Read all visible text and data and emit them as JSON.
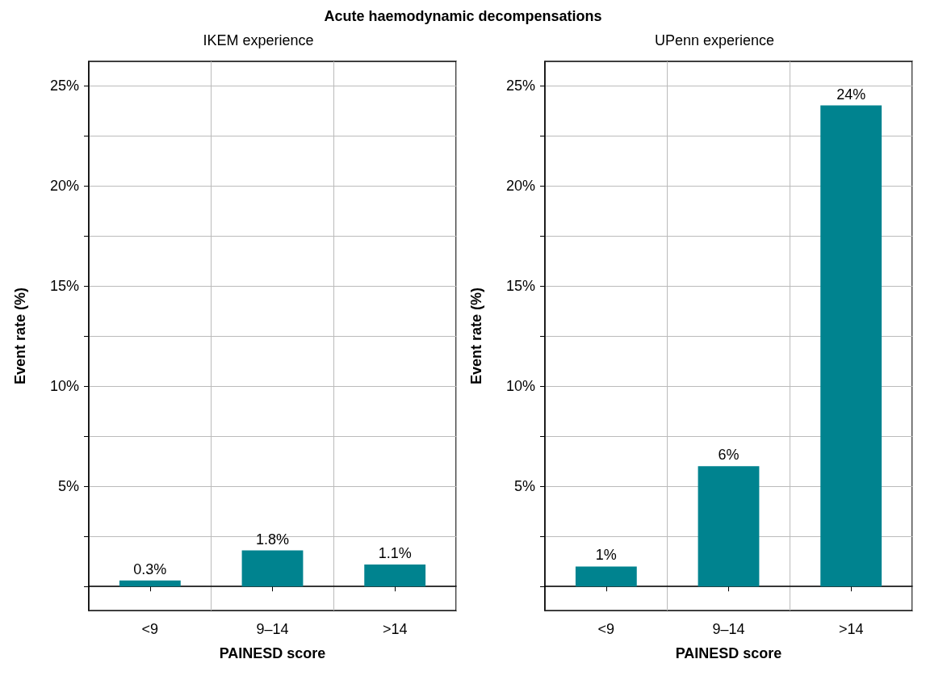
{
  "chart_data": [
    {
      "type": "bar",
      "title": "Acute haemodynamic decompensations",
      "subtitle": "IKEM experience",
      "xlabel": "PAINESD score",
      "ylabel": "Event rate (%)",
      "categories": [
        "<9",
        "9–14",
        ">14"
      ],
      "values": [
        0.3,
        1.8,
        1.1
      ],
      "value_labels": [
        "0.3%",
        "1.8%",
        "1.1%"
      ],
      "color": "#00838f",
      "ylim": [
        -1.2,
        26.2
      ],
      "yticks": [
        {
          "value": 0,
          "label": null
        },
        {
          "value": 2.5,
          "label": null
        },
        {
          "value": 5,
          "label": "5%"
        },
        {
          "value": 7.5,
          "label": null
        },
        {
          "value": 10,
          "label": "10%"
        },
        {
          "value": 12.5,
          "label": null
        },
        {
          "value": 15,
          "label": "15%"
        },
        {
          "value": 17.5,
          "label": null
        },
        {
          "value": 20,
          "label": "20%"
        },
        {
          "value": 22.5,
          "label": null
        },
        {
          "value": 25,
          "label": "25%"
        }
      ],
      "grid": true
    },
    {
      "type": "bar",
      "subtitle": "UPenn experience",
      "xlabel": "PAINESD score",
      "ylabel": "Event rate (%)",
      "categories": [
        "<9",
        "9–14",
        ">14"
      ],
      "values": [
        1,
        6,
        24
      ],
      "value_labels": [
        "1%",
        "6%",
        "24%"
      ],
      "color": "#00838f",
      "ylim": [
        -1.2,
        26.2
      ],
      "yticks": [
        {
          "value": 0,
          "label": null
        },
        {
          "value": 2.5,
          "label": null
        },
        {
          "value": 5,
          "label": "5%"
        },
        {
          "value": 7.5,
          "label": null
        },
        {
          "value": 10,
          "label": "10%"
        },
        {
          "value": 12.5,
          "label": null
        },
        {
          "value": 15,
          "label": "15%"
        },
        {
          "value": 17.5,
          "label": null
        },
        {
          "value": 20,
          "label": "20%"
        },
        {
          "value": 22.5,
          "label": null
        },
        {
          "value": 25,
          "label": "25%"
        }
      ],
      "grid": true
    }
  ]
}
